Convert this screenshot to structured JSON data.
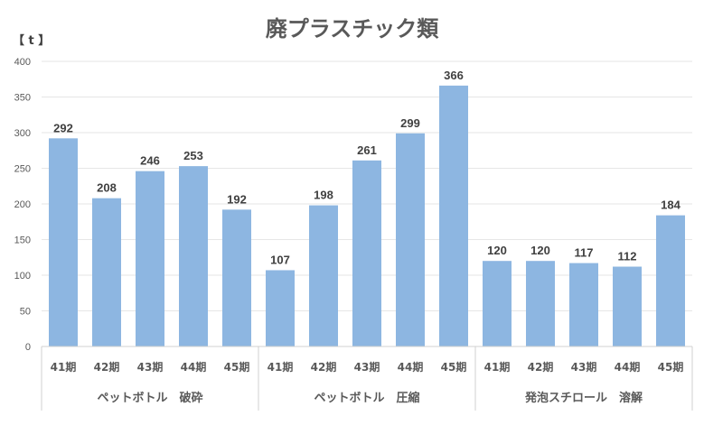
{
  "chart_data": {
    "type": "bar",
    "title": "廃プラスチック類",
    "ylabel": "【 t 】",
    "ylim": [
      0,
      400
    ],
    "yticks": [
      0,
      50,
      100,
      150,
      200,
      250,
      300,
      350,
      400
    ],
    "grid": true,
    "legend": "none",
    "bar_color": "#8DB6E1",
    "groups": [
      {
        "name": "ペットボトル　破砕",
        "categories": [
          "41期",
          "42期",
          "43期",
          "44期",
          "45期"
        ],
        "values": [
          292,
          208,
          246,
          253,
          192
        ]
      },
      {
        "name": "ペットボトル　圧縮",
        "categories": [
          "41期",
          "42期",
          "43期",
          "44期",
          "45期"
        ],
        "values": [
          107,
          198,
          261,
          299,
          366
        ]
      },
      {
        "name": "発泡スチロール　溶解",
        "categories": [
          "41期",
          "42期",
          "43期",
          "44期",
          "45期"
        ],
        "values": [
          120,
          120,
          117,
          112,
          184
        ]
      }
    ]
  }
}
